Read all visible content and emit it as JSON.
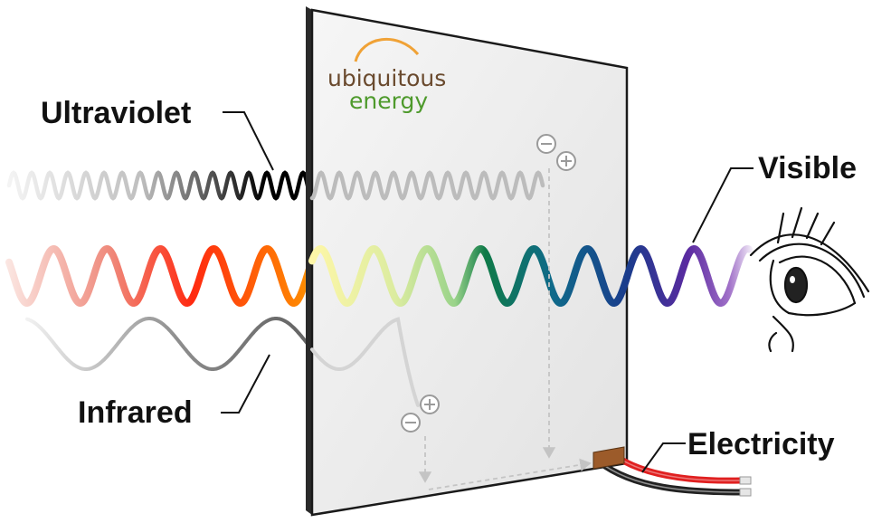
{
  "labels": {
    "ultraviolet": "Ultraviolet",
    "visible": "Visible",
    "infrared": "Infrared",
    "electricity": "Electricity"
  },
  "logo": {
    "line1": "ubiquitous",
    "line2": "energy"
  },
  "charges": {
    "minus": "⊖",
    "plus": "⊕"
  },
  "colors": {
    "logo_arc": "#f0a236",
    "logo_text_brown": "#6a4a2e",
    "logo_text_green": "#4e9a2c",
    "wire_red": "#e02020",
    "wire_black": "#222222",
    "connector": "#9c5b2a",
    "visible_spectrum": [
      "#f4c8c0",
      "#e84a3a",
      "#ff2a10",
      "#ff8a00",
      "#fff7a8",
      "#d6ec9c",
      "#9ad38a",
      "#0f7a48",
      "#0f6a8a",
      "#1a3c8c",
      "#4a2aa0",
      "#7a3aa8",
      "#ffffff"
    ]
  }
}
